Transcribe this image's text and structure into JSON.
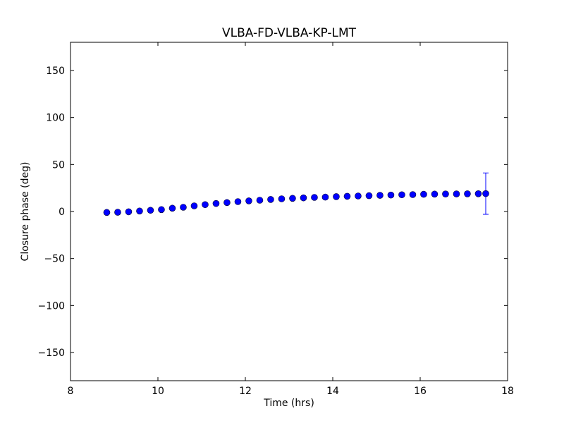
{
  "chart_data": {
    "type": "scatter",
    "title": "VLBA-FD-VLBA-KP-LMT",
    "xlabel": "Time (hrs)",
    "ylabel": "Closure phase (deg)",
    "xlim": [
      8,
      18
    ],
    "ylim": [
      -180,
      180
    ],
    "xticks": [
      8,
      10,
      12,
      14,
      16,
      18
    ],
    "xtick_labels": [
      "8",
      "10",
      "12",
      "14",
      "16",
      "18"
    ],
    "yticks": [
      -150,
      -100,
      -50,
      0,
      50,
      100,
      150
    ],
    "ytick_labels": [
      "−150",
      "−100",
      "−50",
      "0",
      "50",
      "100",
      "150"
    ],
    "grid": false,
    "legend": "none",
    "marker_color": "#0000ff",
    "errorbar_color": "#0000ff",
    "series": [
      {
        "x": [
          8.83,
          9.08,
          9.33,
          9.58,
          9.83,
          10.08,
          10.33,
          10.58,
          10.83,
          11.08,
          11.33,
          11.58,
          11.83,
          12.08,
          12.33,
          12.58,
          12.83,
          13.08,
          13.33,
          13.58,
          13.83,
          14.08,
          14.33,
          14.58,
          14.83,
          15.08,
          15.33,
          15.58,
          15.83,
          16.08,
          16.33,
          16.58,
          16.83,
          17.08,
          17.33,
          17.5
        ],
        "y": [
          -1.0,
          -0.8,
          -0.3,
          0.5,
          1.3,
          2.0,
          3.5,
          4.5,
          6.0,
          7.3,
          8.5,
          9.5,
          10.5,
          11.3,
          12.0,
          12.8,
          13.5,
          14.0,
          14.5,
          15.0,
          15.3,
          15.8,
          16.2,
          16.5,
          16.8,
          17.2,
          17.5,
          17.8,
          18.0,
          18.3,
          18.5,
          18.6,
          18.7,
          18.8,
          18.9,
          19.0
        ],
        "yerr": [
          0,
          0,
          0,
          0,
          0,
          0,
          0,
          0,
          0,
          0,
          0,
          0,
          0,
          0,
          0,
          0,
          0,
          0,
          0,
          0,
          0,
          0,
          0,
          0,
          0,
          0,
          0,
          0,
          0,
          0,
          0,
          0,
          0,
          0,
          0,
          22.0
        ]
      }
    ]
  }
}
